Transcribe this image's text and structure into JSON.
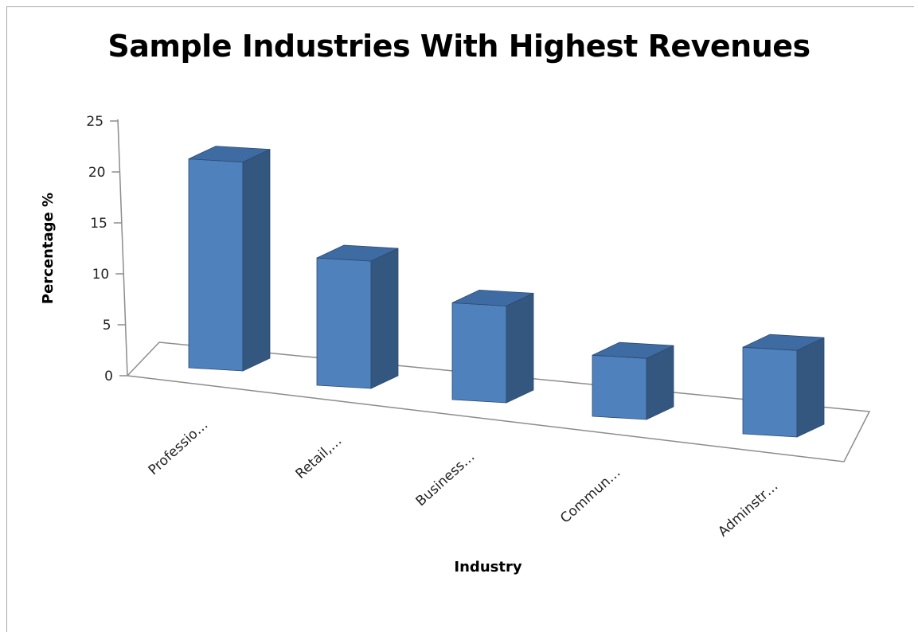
{
  "chart_data": {
    "type": "bar",
    "style": "3d-column",
    "title": "Sample Industries With Highest Revenues",
    "xlabel": "Industry",
    "ylabel": "Percentage %",
    "categories": [
      "Professio…",
      "Retail,…",
      "Business…",
      "Commun…",
      "Adminstr…"
    ],
    "values": [
      20.5,
      12.5,
      9.5,
      6,
      8.5
    ],
    "ylim": [
      0,
      25
    ],
    "yticks": [
      "0",
      "5",
      "10",
      "15",
      "20",
      "25"
    ],
    "grid": false,
    "legend": "none",
    "colors": {
      "front": "#4f81bd",
      "side": "#34577f",
      "top": "#3f6ba3",
      "edge": "#2c4a70",
      "axis": "#8c8c8c"
    }
  }
}
